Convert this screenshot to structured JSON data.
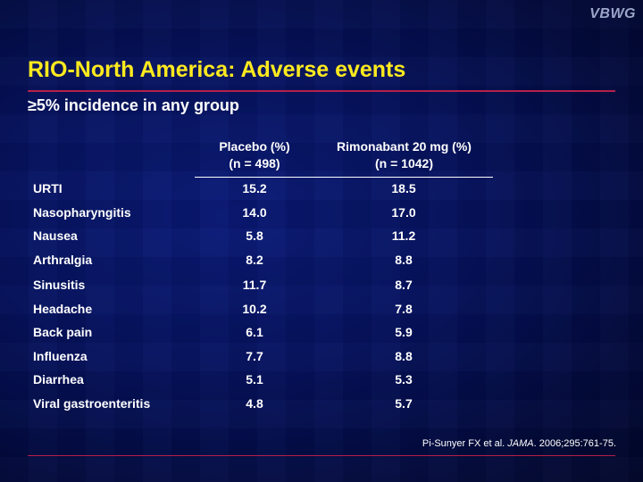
{
  "logo": "VBWG",
  "title": "RIO-North America: Adverse events",
  "subtitle": "≥5% incidence in any group",
  "columns": {
    "placebo_line1": "Placebo (%)",
    "placebo_line2": "(n = 498)",
    "rimonabant_line1": "Rimonabant 20 mg (%)",
    "rimonabant_line2": "(n = 1042)"
  },
  "rows": [
    {
      "event": "URTI",
      "placebo": "15.2",
      "rimonabant": "18.5"
    },
    {
      "event": "Nasopharyngitis",
      "placebo": "14.0",
      "rimonabant": "17.0"
    },
    {
      "event": "Nausea",
      "placebo": "5.8",
      "rimonabant": "11.2"
    },
    {
      "event": "Arthralgia",
      "placebo": "8.2",
      "rimonabant": "8.8"
    },
    {
      "event": "Sinusitis",
      "placebo": "11.7",
      "rimonabant": "8.7"
    },
    {
      "event": "Headache",
      "placebo": "10.2",
      "rimonabant": "7.8"
    },
    {
      "event": "Back pain",
      "placebo": "6.1",
      "rimonabant": "5.9"
    },
    {
      "event": "Influenza",
      "placebo": "7.7",
      "rimonabant": "8.8"
    },
    {
      "event": "Diarrhea",
      "placebo": "5.1",
      "rimonabant": "5.3"
    },
    {
      "event": "Viral gastroenteritis",
      "placebo": "4.8",
      "rimonabant": "5.7"
    }
  ],
  "citation": {
    "authors": "Pi-Sunyer FX et al.",
    "journal": "JAMA",
    "details": "2006;295:761-75."
  },
  "colors": {
    "title": "#ffea1e",
    "rule": "#b5204a",
    "background": "#06125c"
  }
}
